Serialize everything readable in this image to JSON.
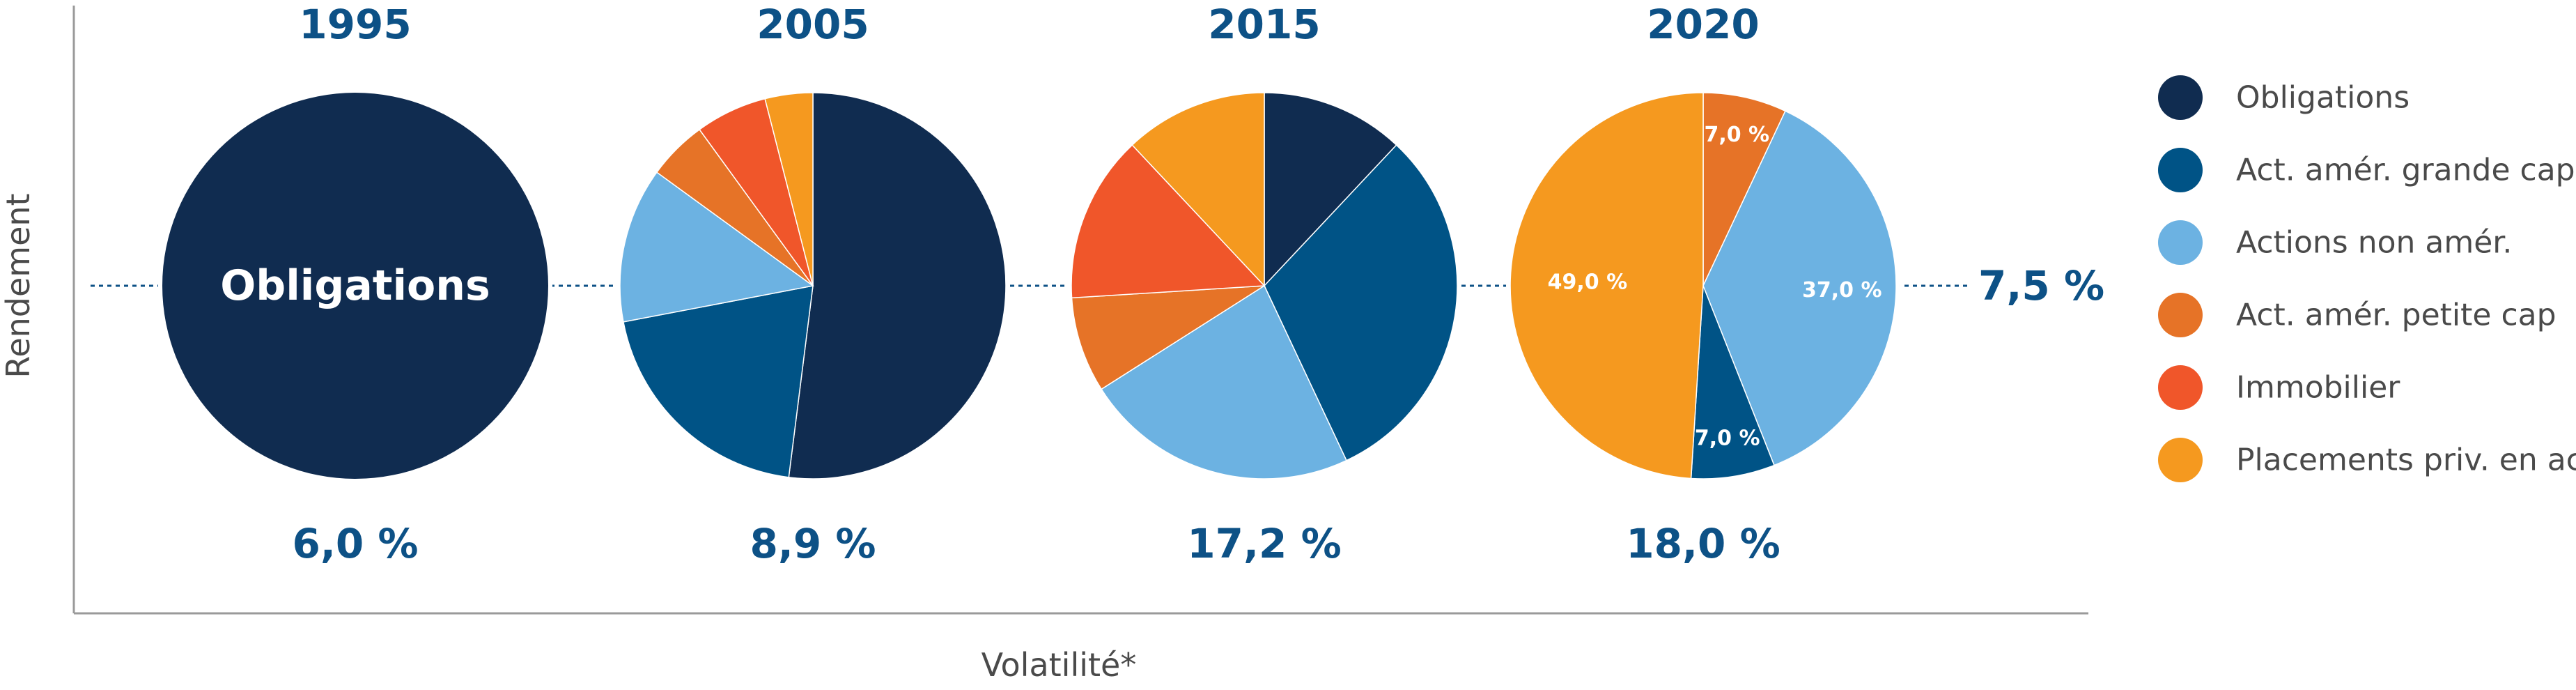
{
  "chart_data": {
    "type": "pie",
    "xlabel": "Volatilité*",
    "ylabel": "Rendement",
    "target_return_label": "7,5 %",
    "categories": [
      "Obligations",
      "Act. amér. grande cap",
      "Actions non amér.",
      "Act. amér. petite cap",
      "Immobilier",
      "Placements priv. en act."
    ],
    "colors": {
      "Obligations": "#102c50",
      "Act. amér. grande cap": "#005386",
      "Actions non amér.": "#6cb2e2",
      "Act. amér. petite cap": "#e67327",
      "Immobilier": "#f0562a",
      "Placements priv. en act.": "#f5991f"
    },
    "pies": [
      {
        "year": "1995",
        "volatility_label": "6,0 %",
        "slices": [
          {
            "category": "Obligations",
            "value": 100,
            "label": "Obligations"
          }
        ]
      },
      {
        "year": "2005",
        "volatility_label": "8,9 %",
        "slices": [
          {
            "category": "Obligations",
            "value": 52
          },
          {
            "category": "Act. amér. grande cap",
            "value": 20
          },
          {
            "category": "Actions non amér.",
            "value": 13
          },
          {
            "category": "Act. amér. petite cap",
            "value": 5
          },
          {
            "category": "Immobilier",
            "value": 6
          },
          {
            "category": "Placements priv. en act.",
            "value": 4
          }
        ]
      },
      {
        "year": "2015",
        "volatility_label": "17,2 %",
        "slices": [
          {
            "category": "Obligations",
            "value": 12
          },
          {
            "category": "Act. amér. grande cap",
            "value": 31
          },
          {
            "category": "Actions non amér.",
            "value": 23
          },
          {
            "category": "Act. amér. petite cap",
            "value": 8
          },
          {
            "category": "Immobilier",
            "value": 14
          },
          {
            "category": "Placements priv. en act.",
            "value": 12
          }
        ]
      },
      {
        "year": "2020",
        "volatility_label": "18,0 %",
        "slices": [
          {
            "category": "Act. amér. petite cap",
            "value": 7,
            "label": "7,0 %"
          },
          {
            "category": "Actions non amér.",
            "value": 37,
            "label": "37,0 %"
          },
          {
            "category": "Act. amér. grande cap",
            "value": 7,
            "label": "7,0 %"
          },
          {
            "category": "Placements priv. en act.",
            "value": 49,
            "label": "49,0 %"
          }
        ]
      }
    ],
    "legend": [
      "Obligations",
      "Act. amér. grande cap",
      "Actions non amér.",
      "Act. amér. petite cap",
      "Immobilier",
      "Placements priv. en act."
    ],
    "legend_position": "right"
  }
}
